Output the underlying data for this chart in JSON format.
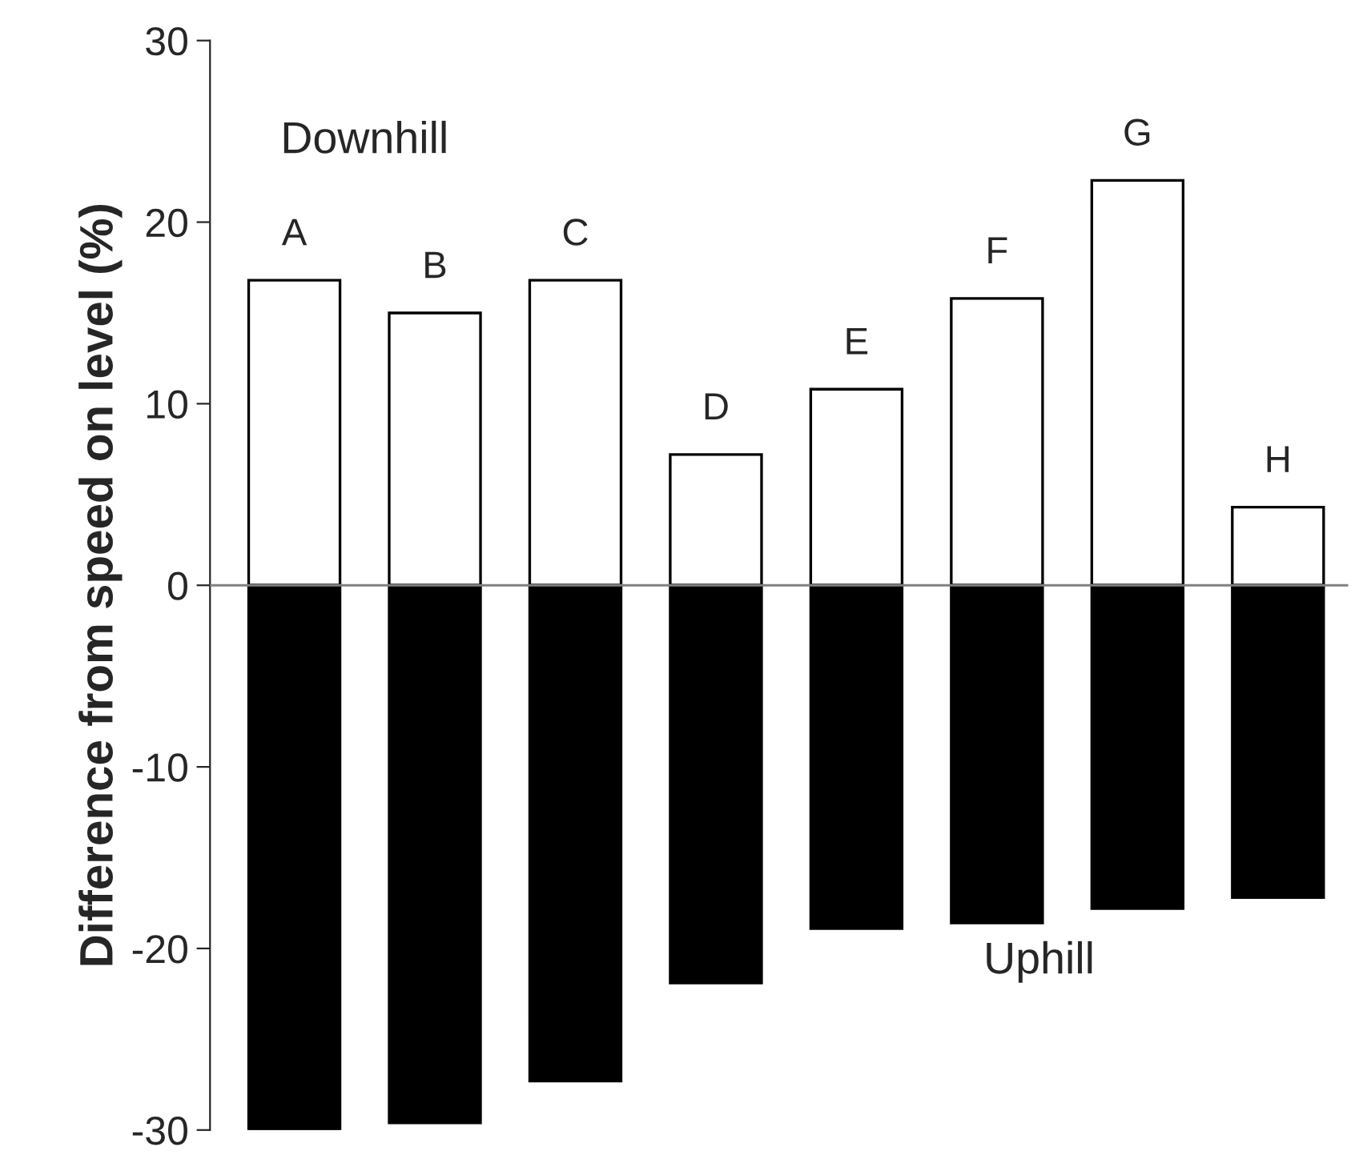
{
  "chart_data": {
    "type": "bar",
    "ylabel": "Difference from speed on level (%)",
    "categories": [
      "A",
      "B",
      "C",
      "D",
      "E",
      "F",
      "G",
      "H"
    ],
    "series": [
      {
        "name": "Downhill",
        "color": "#ffffff",
        "values": [
          16.8,
          15.0,
          16.8,
          7.2,
          10.8,
          15.8,
          22.3,
          4.3
        ]
      },
      {
        "name": "Uphill",
        "color": "#000000",
        "values": [
          -30.0,
          -29.6,
          -27.3,
          -21.9,
          -18.9,
          -18.6,
          -17.8,
          -17.2
        ]
      }
    ],
    "ylim": [
      -30,
      30
    ],
    "yticks": [
      -30,
      -20,
      -10,
      0,
      10,
      20,
      30
    ],
    "ref_lines": [
      {
        "axis": "y",
        "value": 0,
        "color": "#808080"
      }
    ],
    "stacked": true,
    "grid": false,
    "legend": false
  }
}
